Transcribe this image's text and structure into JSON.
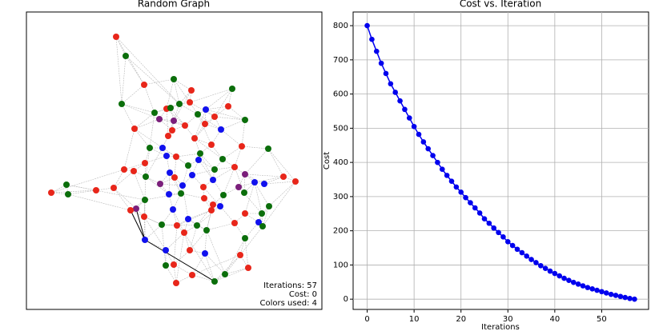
{
  "chart_data": [
    {
      "type": "network",
      "title": "Random Graph",
      "annotations": [
        "Iterations: 57",
        "Cost: 0",
        "Colors used: 4"
      ],
      "colors": [
        "#e8261a",
        "#0b6e0b",
        "#1111ee",
        "#7b1f7b"
      ]
    },
    {
      "type": "line",
      "title": "Cost vs. Iteration",
      "xlabel": "Iterations",
      "ylabel": "Cost",
      "x": [
        0,
        1,
        2,
        3,
        4,
        5,
        6,
        7,
        8,
        9,
        10,
        11,
        12,
        13,
        14,
        15,
        16,
        17,
        18,
        19,
        20,
        21,
        22,
        23,
        24,
        25,
        26,
        27,
        28,
        29,
        30,
        31,
        32,
        33,
        34,
        35,
        36,
        37,
        38,
        39,
        40,
        41,
        42,
        43,
        44,
        45,
        46,
        47,
        48,
        49,
        50,
        51,
        52,
        53,
        54,
        55,
        56,
        57
      ],
      "values": [
        800,
        760,
        725,
        690,
        660,
        630,
        605,
        580,
        555,
        530,
        505,
        482,
        460,
        440,
        420,
        400,
        380,
        362,
        345,
        328,
        313,
        297,
        282,
        267,
        252,
        235,
        222,
        208,
        195,
        182,
        168,
        157,
        146,
        136,
        126,
        116,
        107,
        98,
        90,
        82,
        75,
        68,
        61,
        55,
        49,
        44,
        39,
        34,
        30,
        26,
        22,
        18,
        14,
        11,
        8,
        5,
        2,
        0
      ],
      "color": "#0000ee",
      "xlim": [
        -3,
        60
      ],
      "xticks": [
        0,
        10,
        20,
        30,
        40,
        50
      ],
      "ylim": [
        -30,
        840
      ],
      "yticks": [
        0,
        100,
        200,
        300,
        400,
        500,
        600,
        700,
        800
      ],
      "grid": true
    }
  ]
}
